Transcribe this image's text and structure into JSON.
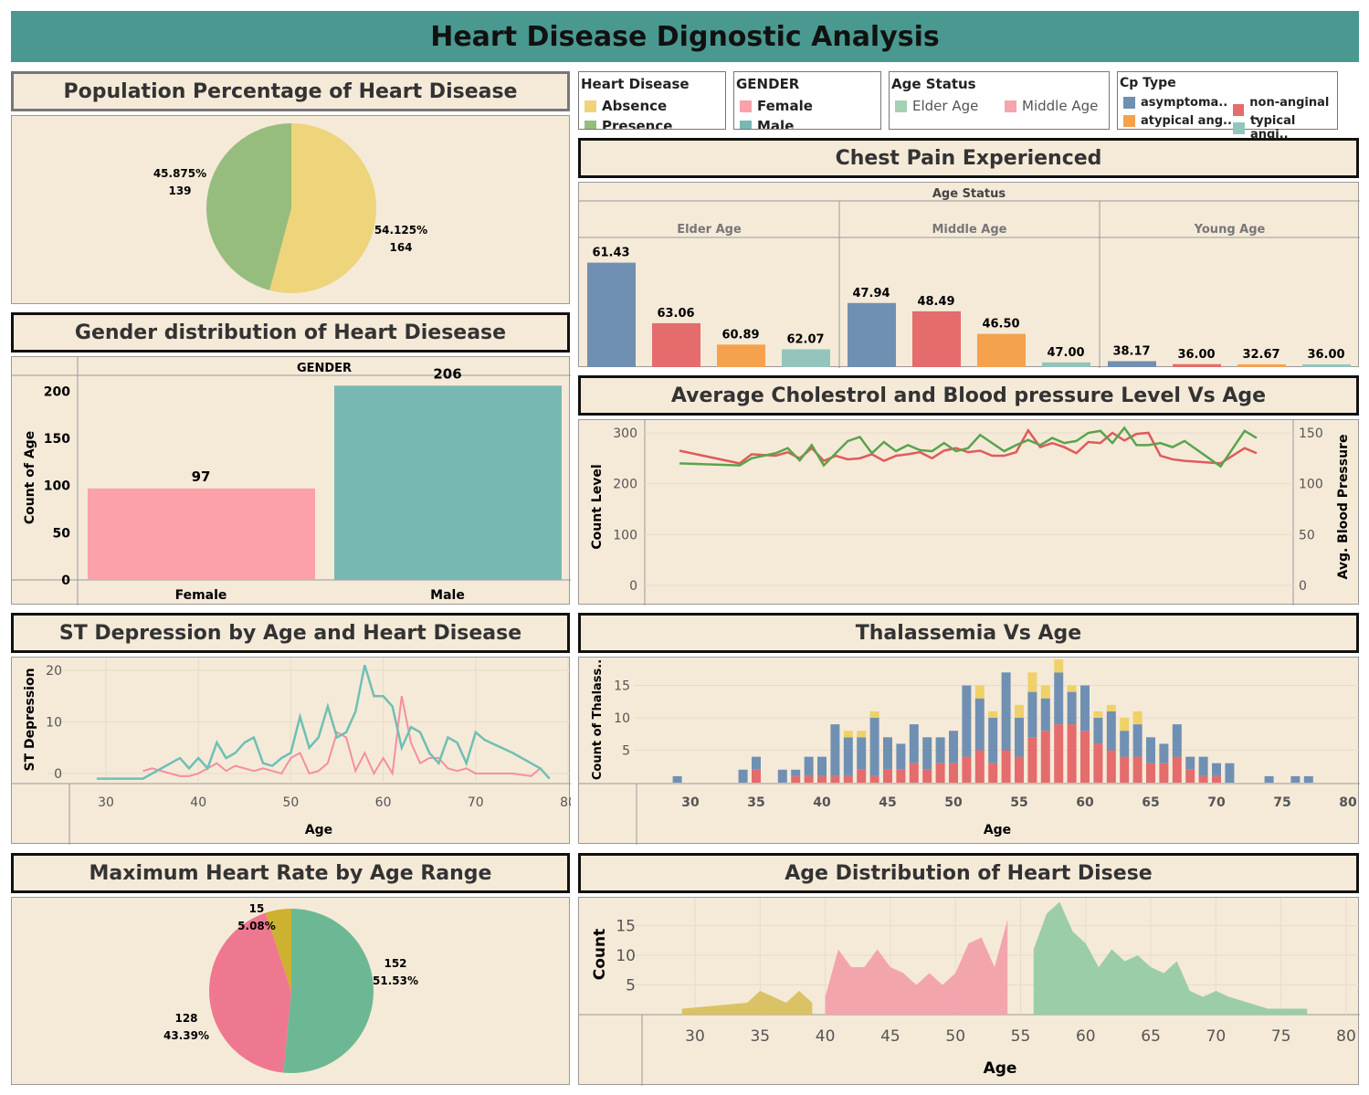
{
  "header": {
    "title": "Heart Disease Dignostic Analysis"
  },
  "colors": {
    "background": "#f5ead8",
    "header": "#4a9990",
    "absence": "#eed47a",
    "presence": "#96bd7d",
    "female": "#fca1a9",
    "male": "#79b8b2",
    "elder": "#a6d0b4",
    "middle": "#f4a5ad",
    "asymptomatic": "#7090b3",
    "non_anginal": "#e46c6c",
    "atypical": "#f4a24e",
    "typical": "#93c5bc",
    "cholesterol": "#e05a5a",
    "blood_pressure": "#5aa34e",
    "st_absence": "#f58fa0",
    "st_presence": "#6fbfb5",
    "thal_a": "#7090b3",
    "thal_b": "#e46c6c",
    "thal_c": "#eed168",
    "dist_young": "#d8c060",
    "dist_middle": "#f2a1ac",
    "dist_elder": "#97cba6",
    "hr_elder": "#6db894",
    "hr_middle": "#ef7891",
    "hr_young": "#cdb230"
  },
  "legends": {
    "heart_disease": {
      "title": "Heart Disease",
      "items": [
        "Absence",
        "Presence"
      ]
    },
    "gender": {
      "title": "GENDER",
      "items": [
        "Female",
        "Male"
      ]
    },
    "age_status": {
      "title": "Age Status",
      "items": [
        "Elder Age",
        "Middle Age"
      ]
    },
    "cp_type": {
      "title": "Cp Type",
      "items": [
        "asymptoma..",
        "non-anginal ..",
        "atypical ang..",
        "typical angi.."
      ]
    }
  },
  "titles": {
    "population": "Population Percentage of Heart Disease",
    "gender": "Gender distribution of Heart Diesease",
    "chest": "Chest Pain Experienced",
    "chol": "Average Cholestrol and Blood pressure Level Vs Age",
    "st": "ST Depression by  Age and Heart Disease",
    "thal": "Thalassemia Vs Age",
    "hr": "Maximum Heart Rate by Age Range",
    "dist": "Age Distribution of Heart Disese"
  },
  "chart_data": [
    {
      "id": "population",
      "type": "pie",
      "slices": [
        {
          "name": "Absence",
          "percent": "54.125%",
          "count": "164",
          "value": 164
        },
        {
          "name": "Presence",
          "percent": "45.875%",
          "count": "139",
          "value": 139
        }
      ]
    },
    {
      "id": "gender",
      "type": "bar",
      "header": "GENDER",
      "ylabel": "Count of Age",
      "categories": [
        "Female",
        "Male"
      ],
      "values": [
        97,
        206
      ],
      "value_labels": [
        "97",
        "206"
      ],
      "yticks": [
        "0",
        "50",
        "100",
        "150",
        "200"
      ],
      "ylim": [
        0,
        215
      ]
    },
    {
      "id": "chest",
      "type": "bar",
      "header": "Age Status",
      "groups": [
        {
          "name": "Elder Age",
          "values": [
            61.43,
            63.06,
            60.89,
            62.07
          ],
          "labels": [
            "61.43",
            "63.06",
            "60.89",
            "62.07"
          ],
          "heights": [
            0.88,
            0.37,
            0.19,
            0.15
          ]
        },
        {
          "name": "Middle Age",
          "values": [
            47.94,
            48.49,
            46.5,
            47.0
          ],
          "labels": [
            "47.94",
            "48.49",
            "46.50",
            "47.00"
          ],
          "heights": [
            0.54,
            0.47,
            0.28,
            0.04
          ]
        },
        {
          "name": "Young Age",
          "values": [
            38.17,
            36.0,
            32.67,
            36.0
          ],
          "labels": [
            "38.17",
            "36.00",
            "32.67",
            "36.00"
          ],
          "heights": [
            0.05,
            0.025,
            0.02,
            0.01
          ]
        }
      ]
    },
    {
      "id": "chol",
      "type": "line",
      "ylabel_left": "Count  Level",
      "ylabel_right": "Avg. Blood Pressure",
      "yticks_left": [
        "0",
        "100",
        "200",
        "300"
      ],
      "yticks_right": [
        "0",
        "50",
        "100",
        "150"
      ],
      "x": [
        29,
        34,
        35,
        37,
        38,
        39,
        40,
        41,
        42,
        43,
        44,
        45,
        46,
        47,
        48,
        49,
        50,
        51,
        52,
        53,
        54,
        55,
        56,
        57,
        58,
        59,
        60,
        61,
        62,
        63,
        64,
        65,
        66,
        67,
        68,
        69,
        70,
        71,
        74,
        76,
        77
      ],
      "series": [
        {
          "name": "Cholesterol",
          "values": [
            265,
            240,
            258,
            255,
            262,
            250,
            270,
            245,
            255,
            248,
            250,
            258,
            245,
            255,
            258,
            262,
            250,
            265,
            270,
            262,
            265,
            255,
            255,
            262,
            305,
            272,
            280,
            272,
            260,
            282,
            280,
            300,
            285,
            298,
            300,
            255,
            248,
            245,
            240,
            270,
            260
          ]
        },
        {
          "name": "Blood pressure",
          "values": [
            120,
            118,
            125,
            130,
            135,
            123,
            138,
            118,
            130,
            142,
            146,
            130,
            141,
            132,
            138,
            133,
            132,
            140,
            132,
            135,
            148,
            140,
            132,
            138,
            143,
            138,
            145,
            140,
            142,
            150,
            152,
            140,
            155,
            138,
            138,
            140,
            136,
            142,
            117,
            152,
            145
          ]
        }
      ]
    },
    {
      "id": "st",
      "type": "line",
      "xlabel": "Age",
      "ylabel": "ST Depression",
      "xticks": [
        "30",
        "40",
        "50",
        "60",
        "70",
        "80"
      ],
      "yticks": [
        "0",
        "10",
        "20"
      ],
      "series": [
        {
          "name": "Absence",
          "x": [
            34,
            35,
            36,
            37,
            38,
            39,
            40,
            41,
            42,
            43,
            44,
            45,
            46,
            47,
            48,
            49,
            50,
            51,
            52,
            53,
            54,
            55,
            56,
            57,
            58,
            59,
            60,
            61,
            62,
            63,
            64,
            65,
            66,
            67,
            68,
            69,
            70,
            71,
            74,
            76,
            77
          ],
          "values": [
            0.5,
            1,
            0.5,
            0,
            -0.5,
            -0.5,
            0,
            1,
            2,
            0.5,
            1.5,
            1,
            0.5,
            1,
            0.5,
            0,
            3,
            4,
            0,
            0.5,
            2,
            8,
            7,
            0.5,
            4,
            0,
            3,
            0,
            15,
            6,
            2,
            3,
            3,
            1,
            0.5,
            1,
            0,
            0,
            0,
            -0.5,
            1
          ]
        },
        {
          "name": "Presence",
          "x": [
            29,
            34,
            35,
            36,
            37,
            38,
            39,
            40,
            41,
            42,
            43,
            44,
            45,
            46,
            47,
            48,
            49,
            50,
            51,
            52,
            53,
            54,
            55,
            56,
            57,
            58,
            59,
            60,
            61,
            62,
            63,
            64,
            65,
            66,
            67,
            68,
            69,
            70,
            71,
            74,
            76,
            77,
            78
          ],
          "values": [
            -1,
            -1,
            0,
            1,
            2,
            3,
            1,
            3,
            1,
            6,
            3,
            4,
            6,
            7,
            2,
            1.5,
            3,
            4,
            11,
            5,
            7,
            13,
            7,
            8,
            12,
            21,
            15,
            15,
            13,
            5,
            9,
            8,
            4,
            2,
            7,
            6,
            2,
            8,
            6.5,
            4,
            2,
            1,
            -1
          ]
        }
      ]
    },
    {
      "id": "thal",
      "type": "bar",
      "stacked": true,
      "xlabel": "Age",
      "ylabel": "Count of Thalass..",
      "xticks": [
        "30",
        "35",
        "40",
        "45",
        "50",
        "55",
        "60",
        "65",
        "70",
        "75",
        "80"
      ],
      "yticks": [
        "5",
        "10",
        "15"
      ],
      "x": [
        29,
        34,
        35,
        37,
        38,
        39,
        40,
        41,
        42,
        43,
        44,
        45,
        46,
        47,
        48,
        49,
        50,
        51,
        52,
        53,
        54,
        55,
        56,
        57,
        58,
        59,
        60,
        61,
        62,
        63,
        64,
        65,
        66,
        67,
        68,
        69,
        70,
        71,
        74,
        76,
        77
      ],
      "series": [
        {
          "name": "Blue",
          "values": [
            1,
            2,
            2,
            2,
            1,
            3,
            3,
            8,
            6,
            5,
            9,
            5,
            4,
            6,
            5,
            4,
            5,
            11,
            8,
            7,
            12,
            6,
            7,
            5,
            8,
            5,
            7,
            4,
            6,
            4,
            5,
            4,
            3,
            5,
            2,
            3,
            2,
            3,
            1,
            1,
            1
          ]
        },
        {
          "name": "Red",
          "values": [
            0,
            0,
            2,
            0,
            1,
            1,
            1,
            1,
            1,
            2,
            1,
            2,
            2,
            3,
            2,
            3,
            3,
            4,
            5,
            3,
            5,
            4,
            7,
            8,
            9,
            9,
            8,
            6,
            5,
            4,
            4,
            3,
            3,
            4,
            2,
            1,
            1,
            0,
            0,
            0,
            0
          ]
        },
        {
          "name": "Yellow",
          "values": [
            0,
            0,
            0,
            0,
            0,
            0,
            0,
            0,
            1,
            1,
            1,
            0,
            0,
            0,
            0,
            0,
            0,
            0,
            2,
            1,
            0,
            2,
            3,
            2,
            2,
            1,
            0,
            1,
            1,
            2,
            2,
            0,
            0,
            0,
            0,
            0,
            0,
            0,
            0,
            0,
            0
          ]
        }
      ]
    },
    {
      "id": "hr",
      "type": "pie",
      "slices": [
        {
          "name": "Elder Age",
          "count": "152",
          "percent": "51.53%",
          "value": 152
        },
        {
          "name": "Middle Age",
          "count": "128",
          "percent": "43.39%",
          "value": 128
        },
        {
          "name": "Young Age",
          "count": "15",
          "percent": "5.08%",
          "value": 15
        }
      ]
    },
    {
      "id": "dist",
      "type": "area",
      "xlabel": "Age",
      "ylabel": "Count",
      "xticks": [
        "30",
        "35",
        "40",
        "45",
        "50",
        "55",
        "60",
        "65",
        "70",
        "75",
        "80"
      ],
      "yticks": [
        "5",
        "10",
        "15"
      ],
      "series": [
        {
          "name": "Young Age",
          "x": [
            29,
            34,
            35,
            36,
            37,
            38,
            39
          ],
          "values": [
            1,
            2,
            4,
            3,
            2,
            4,
            2
          ]
        },
        {
          "name": "Middle Age",
          "x": [
            40,
            41,
            42,
            43,
            44,
            45,
            46,
            47,
            48,
            49,
            50,
            51,
            52,
            53,
            54
          ],
          "values": [
            3,
            11,
            8,
            8,
            11,
            8,
            7,
            5,
            7,
            5,
            7,
            12,
            13,
            8,
            16
          ]
        },
        {
          "name": "Elder Age",
          "x": [
            56,
            57,
            58,
            59,
            60,
            61,
            62,
            63,
            64,
            65,
            66,
            67,
            68,
            69,
            70,
            71,
            74,
            76,
            77
          ],
          "values": [
            11,
            17,
            19,
            14,
            12,
            8,
            11,
            9,
            10,
            8,
            7,
            9,
            4,
            3,
            4,
            3,
            1,
            1,
            1
          ]
        }
      ]
    }
  ]
}
